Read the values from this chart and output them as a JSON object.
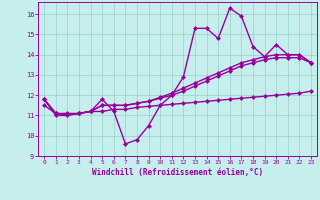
{
  "x": [
    0,
    1,
    2,
    3,
    4,
    5,
    6,
    7,
    8,
    9,
    10,
    11,
    12,
    13,
    14,
    15,
    16,
    17,
    18,
    19,
    20,
    21,
    22,
    23
  ],
  "y_main": [
    11.8,
    11.0,
    11.0,
    11.1,
    11.2,
    11.8,
    11.2,
    9.6,
    9.8,
    10.5,
    11.5,
    12.0,
    12.9,
    15.3,
    15.3,
    14.8,
    16.3,
    15.9,
    14.4,
    13.9,
    14.5,
    14.0,
    14.0,
    13.6
  ],
  "y_trend1": [
    11.8,
    11.1,
    11.05,
    11.1,
    11.2,
    11.5,
    11.5,
    11.5,
    11.6,
    11.7,
    11.9,
    12.1,
    12.35,
    12.6,
    12.85,
    13.1,
    13.35,
    13.6,
    13.75,
    13.9,
    14.0,
    14.0,
    14.0,
    13.6
  ],
  "y_trend2": [
    11.8,
    11.1,
    11.05,
    11.1,
    11.2,
    11.5,
    11.5,
    11.5,
    11.6,
    11.7,
    11.85,
    12.0,
    12.2,
    12.45,
    12.7,
    12.95,
    13.2,
    13.45,
    13.6,
    13.75,
    13.85,
    13.85,
    13.85,
    13.6
  ],
  "y_flat": [
    11.5,
    11.1,
    11.1,
    11.1,
    11.2,
    11.2,
    11.3,
    11.3,
    11.4,
    11.45,
    11.5,
    11.55,
    11.6,
    11.65,
    11.7,
    11.75,
    11.8,
    11.85,
    11.9,
    11.95,
    12.0,
    12.05,
    12.1,
    12.2
  ],
  "background_color": "#c5eeed",
  "grid_color": "#9dd4d3",
  "line_color": "#990099",
  "xlabel": "Windchill (Refroidissement éolien,°C)",
  "ylim": [
    9,
    16.6
  ],
  "xlim": [
    -0.5,
    23.5
  ],
  "yticks": [
    9,
    10,
    11,
    12,
    13,
    14,
    15,
    16
  ],
  "xticks": [
    0,
    1,
    2,
    3,
    4,
    5,
    6,
    7,
    8,
    9,
    10,
    11,
    12,
    13,
    14,
    15,
    16,
    17,
    18,
    19,
    20,
    21,
    22,
    23
  ],
  "markersize": 2.5,
  "linewidth": 1.0
}
